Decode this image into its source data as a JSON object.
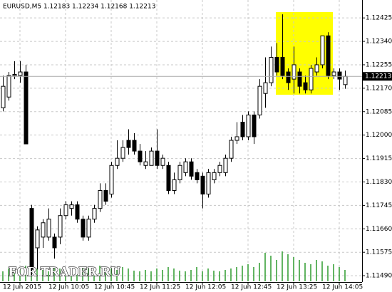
{
  "chart_data": {
    "type": "candlestick",
    "title": "EURUSD,M5 1.12183 1.12234 1.12168 1.12213",
    "current_price_label": "1.12213",
    "watermark": "FOR TRADER.RU",
    "categories": [
      null,
      null,
      null,
      "12 Jun 2015",
      null,
      null,
      null,
      null,
      null,
      null,
      null,
      "12 Jun 10:05",
      null,
      null,
      null,
      null,
      null,
      null,
      null,
      "12 Jun 10:45",
      null,
      null,
      null,
      null,
      null,
      null,
      null,
      "12 Jun 11:25",
      null,
      null,
      null,
      null,
      null,
      null,
      null,
      "12 Jun 12:05",
      null,
      null,
      null,
      null,
      null,
      null,
      null,
      "12 Jun 12:45",
      null,
      null,
      null,
      null,
      null,
      null,
      null,
      "12 Jun 13:25",
      null,
      null,
      null,
      null,
      null,
      null,
      null,
      "12 Jun 14:05",
      null
    ],
    "open": [
      1.12099,
      1.12138,
      1.12216,
      1.12216,
      1.12229,
      1.11734,
      1.11591,
      1.1163,
      1.1163,
      1.1163,
      1.1163,
      1.11708,
      1.11734,
      1.11747,
      1.11695,
      1.1163,
      1.11695,
      1.11734,
      1.11799,
      1.11786,
      1.1189,
      1.11916,
      1.11981,
      1.11981,
      1.11942,
      1.1189,
      1.1189,
      1.11942,
      1.1189,
      1.1189,
      1.11799,
      1.11838,
      1.11864,
      1.11903,
      1.11864,
      1.11851,
      1.11786,
      1.11838,
      1.11864,
      1.11864,
      1.11916,
      1.11981,
      1.12047,
      1.11994,
      1.12073,
      1.12073,
      1.12151,
      1.1219,
      1.12282,
      1.12282,
      1.12229,
      1.12203,
      1.12229,
      1.1219,
      1.12164,
      1.12229,
      1.12255,
      1.1236,
      1.12216,
      1.12229,
      1.12183
    ],
    "high": [
      1.12216,
      1.12229,
      1.12268,
      1.12268,
      1.12255,
      1.11747,
      1.11669,
      1.11695,
      1.11734,
      1.11643,
      1.11734,
      1.1176,
      1.1176,
      1.1176,
      1.11708,
      1.11708,
      1.11747,
      1.11825,
      1.11825,
      1.11903,
      1.11981,
      1.11981,
      1.12021,
      1.12007,
      1.11968,
      1.11942,
      1.11955,
      1.12021,
      1.11929,
      1.11903,
      1.11864,
      1.11903,
      1.11916,
      1.11916,
      1.11877,
      1.11864,
      1.11877,
      1.11877,
      1.11903,
      1.11929,
      1.11994,
      1.12047,
      1.12073,
      1.12086,
      1.12086,
      1.12203,
      1.12282,
      1.12321,
      1.12334,
      1.12438,
      1.12242,
      1.12321,
      1.12242,
      1.12216,
      1.12255,
      1.12282,
      1.1236,
      1.12373,
      1.12242,
      1.12242,
      1.12234
    ],
    "low": [
      1.12086,
      1.12125,
      1.12203,
      1.1219,
      1.11968,
      1.11487,
      1.11513,
      1.11591,
      1.11617,
      1.11552,
      1.11604,
      1.11695,
      1.11708,
      1.11682,
      1.11617,
      1.11617,
      1.11682,
      1.11721,
      1.11747,
      1.11773,
      1.11877,
      1.11903,
      1.11929,
      1.11929,
      1.1189,
      1.11877,
      1.1189,
      1.11877,
      1.11877,
      1.11786,
      1.11786,
      1.11825,
      1.11851,
      1.11838,
      1.11825,
      1.11734,
      1.11773,
      1.11825,
      1.11851,
      1.11851,
      1.11903,
      1.11968,
      1.11981,
      1.11981,
      1.11968,
      1.1206,
      1.12099,
      1.12177,
      1.12216,
      1.12203,
      1.12164,
      1.12151,
      1.12151,
      1.12151,
      1.12151,
      1.12216,
      1.12242,
      1.12203,
      1.12203,
      1.12164,
      1.12168
    ],
    "close": [
      1.12177,
      1.12216,
      1.1222,
      1.12229,
      1.11968,
      1.11513,
      1.11656,
      1.11682,
      1.11695,
      1.11591,
      1.11708,
      1.11747,
      1.11747,
      1.11695,
      1.1163,
      1.11695,
      1.11734,
      1.11799,
      1.1176,
      1.1189,
      1.11916,
      1.11955,
      1.11955,
      1.11942,
      1.11903,
      1.11903,
      1.11942,
      1.1189,
      1.11916,
      1.11799,
      1.11838,
      1.1189,
      1.11903,
      1.11851,
      1.11838,
      1.11786,
      1.11864,
      1.11864,
      1.1189,
      1.11916,
      1.11981,
      1.11994,
      1.11994,
      1.12073,
      1.11994,
      1.12177,
      1.1219,
      1.12282,
      1.12229,
      1.12216,
      1.1219,
      1.12255,
      1.12177,
      1.12164,
      1.12242,
      1.12255,
      1.1236,
      1.12216,
      1.12229,
      1.12203,
      1.12213
    ],
    "volumes": [
      14,
      18,
      16,
      20,
      22,
      30,
      18,
      16,
      14,
      20,
      18,
      15,
      14,
      16,
      20,
      18,
      15,
      22,
      14,
      18,
      16,
      20,
      18,
      15,
      14,
      16,
      14,
      18,
      16,
      20,
      18,
      15,
      14,
      16,
      20,
      14,
      18,
      15,
      14,
      16,
      18,
      20,
      22,
      24,
      20,
      26,
      40,
      36,
      30,
      42,
      38,
      34,
      30,
      26,
      24,
      30,
      28,
      22,
      24,
      20,
      16
    ],
    "ylim": [
      1.11467,
      1.1249
    ],
    "yticks": [
      {
        "value": 1.12425,
        "label": "1.12425"
      },
      {
        "value": 1.1234,
        "label": "1.12340"
      },
      {
        "value": 1.12255,
        "label": "1.12255"
      },
      {
        "value": 1.1217,
        "label": "1.12170"
      },
      {
        "value": 1.12085,
        "label": "1.12085"
      },
      {
        "value": 1.12,
        "label": "1.12000"
      },
      {
        "value": 1.11915,
        "label": "1.11915"
      },
      {
        "value": 1.1183,
        "label": "1.11830"
      },
      {
        "value": 1.11745,
        "label": "1.11745"
      },
      {
        "value": 1.1166,
        "label": "1.11660"
      },
      {
        "value": 1.11575,
        "label": "1.11575"
      },
      {
        "value": 1.1149,
        "label": "1.11490"
      }
    ],
    "current_price": 1.12213,
    "grid": true,
    "up_color": "#ffffff",
    "down_color": "#000000",
    "volume_color": "#2e9a2e",
    "highlight_color": "#ffff00"
  }
}
